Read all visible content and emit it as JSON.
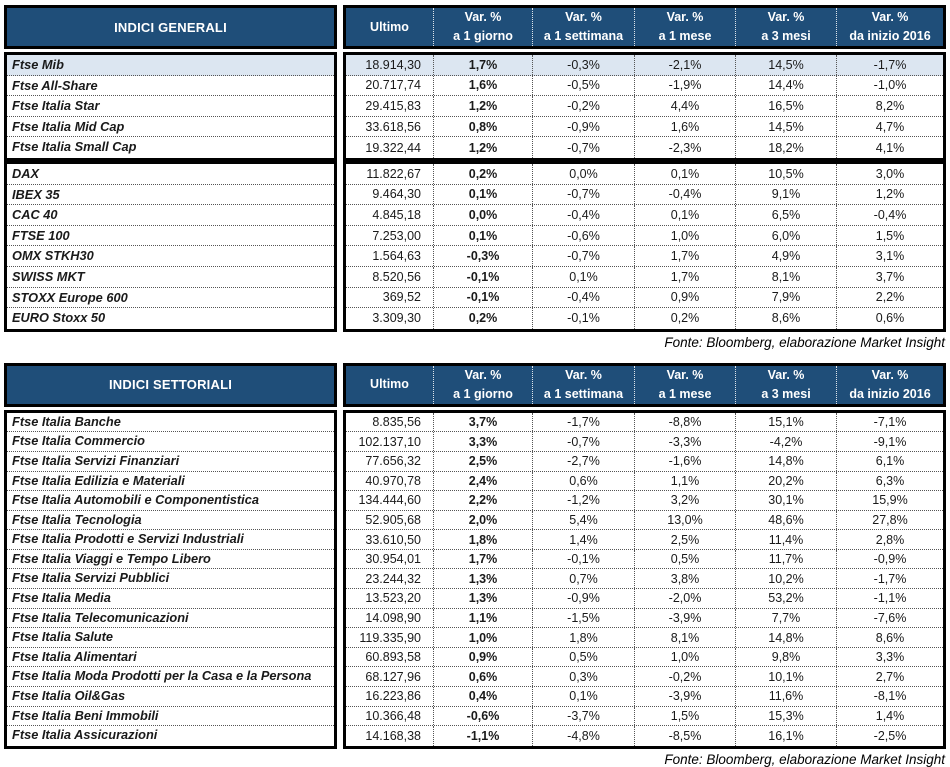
{
  "colors": {
    "header_bg": "#1F4E79",
    "header_text": "#FFFFFF",
    "highlight_row_bg": "#DCE6F1",
    "border": "#000000"
  },
  "tables": [
    {
      "title": "INDICI GENERALI",
      "source_note": "Fonte: Bloomberg, elaborazione Market Insight",
      "columns": [
        {
          "label": "Ultimo",
          "sub": ""
        },
        {
          "label": "Var. %",
          "sub": "a 1 giorno"
        },
        {
          "label": "Var. %",
          "sub": "a 1 settimana"
        },
        {
          "label": "Var. %",
          "sub": "a 1 mese"
        },
        {
          "label": "Var. %",
          "sub": "a 3 mesi"
        },
        {
          "label": "Var. %",
          "sub": "da inizio 2016"
        }
      ],
      "groups": [
        {
          "rows": [
            {
              "label": "Ftse Mib",
              "highlight": true,
              "values": [
                "18.914,30",
                "1,7%",
                "-0,3%",
                "-2,1%",
                "14,5%",
                "-1,7%"
              ]
            },
            {
              "label": "Ftse All-Share",
              "highlight": false,
              "values": [
                "20.717,74",
                "1,6%",
                "-0,5%",
                "-1,9%",
                "14,4%",
                "-1,0%"
              ]
            },
            {
              "label": "Ftse Italia Star",
              "highlight": false,
              "values": [
                "29.415,83",
                "1,2%",
                "-0,2%",
                "4,4%",
                "16,5%",
                "8,2%"
              ]
            },
            {
              "label": "Ftse Italia Mid Cap",
              "highlight": false,
              "values": [
                "33.618,56",
                "0,8%",
                "-0,9%",
                "1,6%",
                "14,5%",
                "4,7%"
              ]
            },
            {
              "label": "Ftse Italia Small Cap",
              "highlight": false,
              "values": [
                "19.322,44",
                "1,2%",
                "-0,7%",
                "-2,3%",
                "18,2%",
                "4,1%"
              ]
            }
          ]
        },
        {
          "rows": [
            {
              "label": "DAX",
              "highlight": false,
              "values": [
                "11.822,67",
                "0,2%",
                "0,0%",
                "0,1%",
                "10,5%",
                "3,0%"
              ]
            },
            {
              "label": "IBEX 35",
              "highlight": false,
              "values": [
                "9.464,30",
                "0,1%",
                "-0,7%",
                "-0,4%",
                "9,1%",
                "1,2%"
              ]
            },
            {
              "label": "CAC 40",
              "highlight": false,
              "values": [
                "4.845,18",
                "0,0%",
                "-0,4%",
                "0,1%",
                "6,5%",
                "-0,4%"
              ]
            },
            {
              "label": "FTSE 100",
              "highlight": false,
              "values": [
                "7.253,00",
                "0,1%",
                "-0,6%",
                "1,0%",
                "6,0%",
                "1,5%"
              ]
            },
            {
              "label": "OMX STKH30",
              "highlight": false,
              "values": [
                "1.564,63",
                "-0,3%",
                "-0,7%",
                "1,7%",
                "4,9%",
                "3,1%"
              ]
            },
            {
              "label": "SWISS MKT",
              "highlight": false,
              "values": [
                "8.520,56",
                "-0,1%",
                "0,1%",
                "1,7%",
                "8,1%",
                "3,7%"
              ]
            },
            {
              "label": "STOXX Europe 600",
              "highlight": false,
              "values": [
                "369,52",
                "-0,1%",
                "-0,4%",
                "0,9%",
                "7,9%",
                "2,2%"
              ]
            },
            {
              "label": "EURO Stoxx 50",
              "highlight": false,
              "values": [
                "3.309,30",
                "0,2%",
                "-0,1%",
                "0,2%",
                "8,6%",
                "0,6%"
              ]
            }
          ]
        }
      ]
    },
    {
      "title": "INDICI SETTORIALI",
      "source_note": "Fonte: Bloomberg, elaborazione Market Insight",
      "columns": [
        {
          "label": "Ultimo",
          "sub": ""
        },
        {
          "label": "Var. %",
          "sub": "a 1 giorno"
        },
        {
          "label": "Var. %",
          "sub": "a 1 settimana"
        },
        {
          "label": "Var. %",
          "sub": "a 1 mese"
        },
        {
          "label": "Var. %",
          "sub": "a 3 mesi"
        },
        {
          "label": "Var. %",
          "sub": "da inizio 2016"
        }
      ],
      "groups": [
        {
          "rows": [
            {
              "label": "Ftse Italia Banche",
              "highlight": false,
              "values": [
                "8.835,56",
                "3,7%",
                "-1,7%",
                "-8,8%",
                "15,1%",
                "-7,1%"
              ]
            },
            {
              "label": "Ftse Italia Commercio",
              "highlight": false,
              "values": [
                "102.137,10",
                "3,3%",
                "-0,7%",
                "-3,3%",
                "-4,2%",
                "-9,1%"
              ]
            },
            {
              "label": "Ftse Italia Servizi Finanziari",
              "highlight": false,
              "values": [
                "77.656,32",
                "2,5%",
                "-2,7%",
                "-1,6%",
                "14,8%",
                "6,1%"
              ]
            },
            {
              "label": "Ftse Italia Edilizia e Materiali",
              "highlight": false,
              "values": [
                "40.970,78",
                "2,4%",
                "0,6%",
                "1,1%",
                "20,2%",
                "6,3%"
              ]
            },
            {
              "label": "Ftse Italia Automobili e Componentistica",
              "highlight": false,
              "values": [
                "134.444,60",
                "2,2%",
                "-1,2%",
                "3,2%",
                "30,1%",
                "15,9%"
              ]
            },
            {
              "label": "Ftse Italia Tecnologia",
              "highlight": false,
              "values": [
                "52.905,68",
                "2,0%",
                "5,4%",
                "13,0%",
                "48,6%",
                "27,8%"
              ]
            },
            {
              "label": "Ftse Italia Prodotti e Servizi Industriali",
              "highlight": false,
              "values": [
                "33.610,50",
                "1,8%",
                "1,4%",
                "2,5%",
                "11,4%",
                "2,8%"
              ]
            },
            {
              "label": "Ftse Italia Viaggi e Tempo Libero",
              "highlight": false,
              "values": [
                "30.954,01",
                "1,7%",
                "-0,1%",
                "0,5%",
                "11,7%",
                "-0,9%"
              ]
            },
            {
              "label": "Ftse Italia Servizi Pubblici",
              "highlight": false,
              "values": [
                "23.244,32",
                "1,3%",
                "0,7%",
                "3,8%",
                "10,2%",
                "-1,7%"
              ]
            },
            {
              "label": "Ftse Italia Media",
              "highlight": false,
              "values": [
                "13.523,20",
                "1,3%",
                "-0,9%",
                "-2,0%",
                "53,2%",
                "-1,1%"
              ]
            },
            {
              "label": "Ftse Italia Telecomunicazioni",
              "highlight": false,
              "values": [
                "14.098,90",
                "1,1%",
                "-1,5%",
                "-3,9%",
                "7,7%",
                "-7,6%"
              ]
            },
            {
              "label": "Ftse Italia Salute",
              "highlight": false,
              "values": [
                "119.335,90",
                "1,0%",
                "1,8%",
                "8,1%",
                "14,8%",
                "8,6%"
              ]
            },
            {
              "label": "Ftse Italia Alimentari",
              "highlight": false,
              "values": [
                "60.893,58",
                "0,9%",
                "0,5%",
                "1,0%",
                "9,8%",
                "3,3%"
              ]
            },
            {
              "label": "Ftse Italia Moda Prodotti per la Casa e la Persona",
              "highlight": false,
              "values": [
                "68.127,96",
                "0,6%",
                "0,3%",
                "-0,2%",
                "10,1%",
                "2,7%"
              ]
            },
            {
              "label": "Ftse Italia Oil&Gas",
              "highlight": false,
              "values": [
                "16.223,86",
                "0,4%",
                "0,1%",
                "-3,9%",
                "11,6%",
                "-8,1%"
              ]
            },
            {
              "label": "Ftse Italia Beni Immobili",
              "highlight": false,
              "values": [
                "10.366,48",
                "-0,6%",
                "-3,7%",
                "1,5%",
                "15,3%",
                "1,4%"
              ]
            },
            {
              "label": "Ftse Italia Assicurazioni",
              "highlight": false,
              "values": [
                "14.168,38",
                "-1,1%",
                "-4,8%",
                "-8,5%",
                "16,1%",
                "-2,5%"
              ]
            }
          ]
        }
      ]
    }
  ]
}
